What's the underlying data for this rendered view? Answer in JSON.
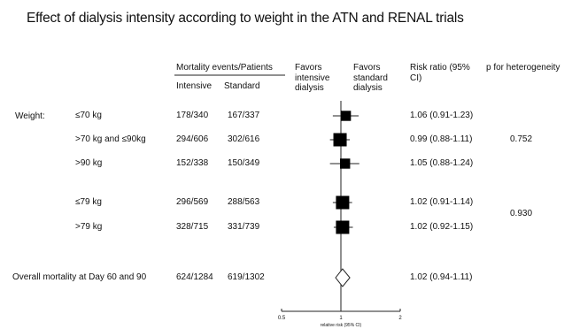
{
  "chart_data": {
    "type": "forest",
    "title": "Effect of dialysis intensity according to weight in the ATN and RENAL trials",
    "headers": {
      "mortality_group": "Mortality events/Patients",
      "intensive": "Intensive",
      "standard": "Standard",
      "favors_left": "Favors intensive dialysis",
      "favors_right": "Favors standard dialysis",
      "risk_ratio": "Risk ratio (95% CI)",
      "p_heterogeneity": "p for heterogeneity"
    },
    "group_label": "Weight:",
    "rows": [
      {
        "label": "≤70 kg",
        "intensive": "178/340",
        "standard": "167/337",
        "rr": 1.06,
        "lo": 0.91,
        "hi": 1.23,
        "rr_text": "1.06 (0.91-1.23)",
        "marker": "square",
        "size": 0.45
      },
      {
        "label": ">70 kg and ≤90kg",
        "intensive": "294/606",
        "standard": "302/616",
        "rr": 0.99,
        "lo": 0.88,
        "hi": 1.11,
        "rr_text": "0.99 (0.88-1.11)",
        "marker": "square",
        "size": 0.75
      },
      {
        "label": ">90 kg",
        "intensive": "152/338",
        "standard": "150/349",
        "rr": 1.05,
        "lo": 0.88,
        "hi": 1.24,
        "rr_text": "1.05 (0.88-1.24)",
        "marker": "square",
        "size": 0.45
      },
      {
        "label": "≤79 kg",
        "intensive": "296/569",
        "standard": "288/563",
        "rr": 1.02,
        "lo": 0.91,
        "hi": 1.14,
        "rr_text": "1.02 (0.91-1.14)",
        "marker": "square",
        "size": 0.75
      },
      {
        "label": ">79 kg",
        "intensive": "328/715",
        "standard": "331/739",
        "rr": 1.02,
        "lo": 0.92,
        "hi": 1.15,
        "rr_text": "1.02 (0.92-1.15)",
        "marker": "square",
        "size": 0.75
      },
      {
        "label": "Overall mortality at Day 60 and 90",
        "intensive": "624/1284",
        "standard": "619/1302",
        "rr": 1.02,
        "lo": 0.94,
        "hi": 1.11,
        "rr_text": "1.02 (0.94-1.11)",
        "marker": "diamond",
        "size": 1
      }
    ],
    "p_values": [
      "0.752",
      "0.930"
    ],
    "x_axis": {
      "ticks": [
        "0.5",
        "1",
        "2"
      ],
      "label": "relative risk (95% CI)",
      "scale": "log",
      "xlim": [
        0.5,
        2
      ],
      "reference": 1
    }
  }
}
